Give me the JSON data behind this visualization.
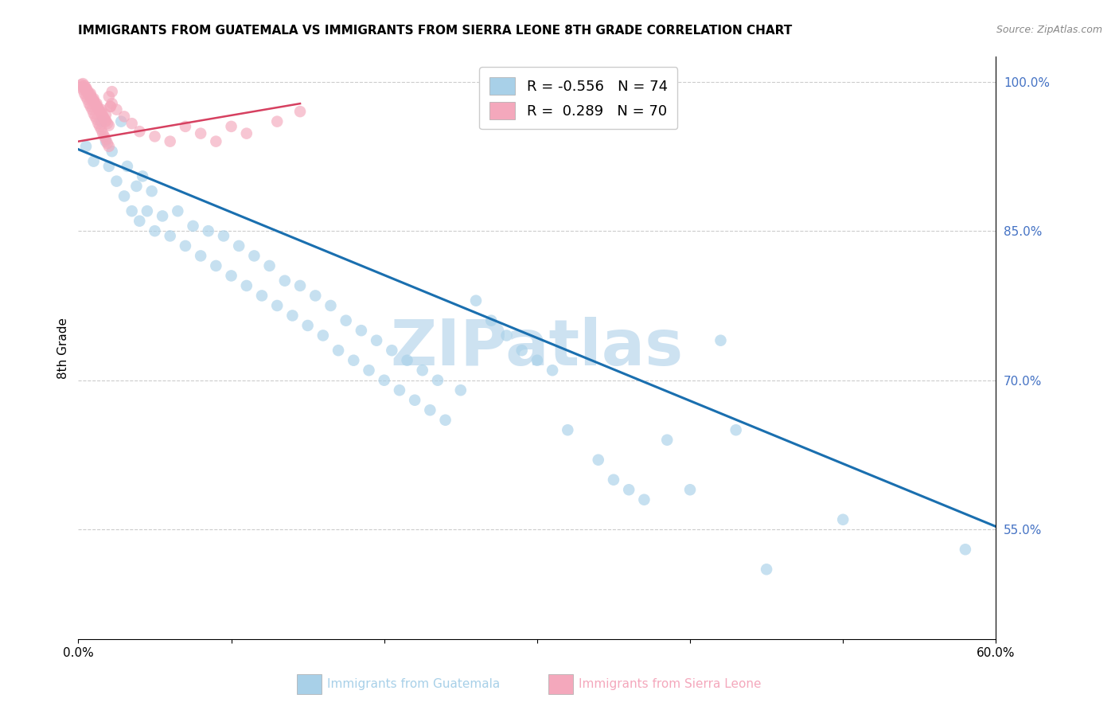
{
  "title": "IMMIGRANTS FROM GUATEMALA VS IMMIGRANTS FROM SIERRA LEONE 8TH GRADE CORRELATION CHART",
  "source": "Source: ZipAtlas.com",
  "ylabel": "8th Grade",
  "xlabel_blue": "Immigrants from Guatemala",
  "xlabel_pink": "Immigrants from Sierra Leone",
  "x_min": 0.0,
  "x_max": 0.6,
  "y_min": 0.44,
  "y_max": 1.025,
  "yticks": [
    0.55,
    0.7,
    0.85,
    1.0
  ],
  "ytick_labels": [
    "55.0%",
    "70.0%",
    "85.0%",
    "100.0%"
  ],
  "R_blue": -0.556,
  "N_blue": 74,
  "R_pink": 0.289,
  "N_pink": 70,
  "blue_color": "#a8d0e8",
  "pink_color": "#f4a8bc",
  "blue_line_color": "#1a6faf",
  "pink_line_color": "#d64060",
  "watermark_text": "ZIPatlas",
  "watermark_color": "#c8dff0",
  "blue_trend_x": [
    0.0,
    0.6
  ],
  "blue_trend_y": [
    0.932,
    0.553
  ],
  "pink_trend_x": [
    0.0,
    0.145
  ],
  "pink_trend_y": [
    0.94,
    0.978
  ],
  "blue_pts_x": [
    0.005,
    0.01,
    0.015,
    0.018,
    0.02,
    0.022,
    0.025,
    0.028,
    0.03,
    0.032,
    0.035,
    0.038,
    0.04,
    0.042,
    0.045,
    0.048,
    0.05,
    0.055,
    0.06,
    0.065,
    0.07,
    0.075,
    0.08,
    0.085,
    0.09,
    0.095,
    0.1,
    0.105,
    0.11,
    0.115,
    0.12,
    0.125,
    0.13,
    0.135,
    0.14,
    0.145,
    0.15,
    0.155,
    0.16,
    0.165,
    0.17,
    0.175,
    0.18,
    0.185,
    0.19,
    0.195,
    0.2,
    0.205,
    0.21,
    0.215,
    0.22,
    0.225,
    0.23,
    0.235,
    0.24,
    0.25,
    0.26,
    0.27,
    0.28,
    0.29,
    0.3,
    0.31,
    0.32,
    0.34,
    0.35,
    0.36,
    0.37,
    0.385,
    0.4,
    0.42,
    0.43,
    0.45,
    0.5,
    0.58
  ],
  "blue_pts_y": [
    0.935,
    0.92,
    0.96,
    0.94,
    0.915,
    0.93,
    0.9,
    0.96,
    0.885,
    0.915,
    0.87,
    0.895,
    0.86,
    0.905,
    0.87,
    0.89,
    0.85,
    0.865,
    0.845,
    0.87,
    0.835,
    0.855,
    0.825,
    0.85,
    0.815,
    0.845,
    0.805,
    0.835,
    0.795,
    0.825,
    0.785,
    0.815,
    0.775,
    0.8,
    0.765,
    0.795,
    0.755,
    0.785,
    0.745,
    0.775,
    0.73,
    0.76,
    0.72,
    0.75,
    0.71,
    0.74,
    0.7,
    0.73,
    0.69,
    0.72,
    0.68,
    0.71,
    0.67,
    0.7,
    0.66,
    0.69,
    0.78,
    0.76,
    0.745,
    0.73,
    0.72,
    0.71,
    0.65,
    0.62,
    0.6,
    0.59,
    0.58,
    0.64,
    0.59,
    0.74,
    0.65,
    0.51,
    0.56,
    0.53
  ],
  "pink_pts_x": [
    0.002,
    0.003,
    0.004,
    0.005,
    0.006,
    0.007,
    0.008,
    0.009,
    0.01,
    0.011,
    0.012,
    0.013,
    0.014,
    0.015,
    0.016,
    0.017,
    0.018,
    0.019,
    0.02,
    0.021,
    0.003,
    0.005,
    0.007,
    0.009,
    0.011,
    0.013,
    0.015,
    0.017,
    0.019,
    0.021,
    0.004,
    0.006,
    0.008,
    0.01,
    0.012,
    0.014,
    0.016,
    0.018,
    0.02,
    0.022,
    0.002,
    0.004,
    0.006,
    0.008,
    0.01,
    0.012,
    0.014,
    0.016,
    0.018,
    0.02,
    0.005,
    0.008,
    0.01,
    0.012,
    0.015,
    0.018,
    0.022,
    0.025,
    0.03,
    0.035,
    0.04,
    0.05,
    0.06,
    0.07,
    0.08,
    0.09,
    0.1,
    0.11,
    0.13,
    0.145
  ],
  "pink_pts_y": [
    0.995,
    0.992,
    0.988,
    0.985,
    0.982,
    0.978,
    0.975,
    0.972,
    0.968,
    0.965,
    0.962,
    0.958,
    0.955,
    0.952,
    0.948,
    0.945,
    0.942,
    0.938,
    0.935,
    0.975,
    0.998,
    0.993,
    0.988,
    0.983,
    0.978,
    0.973,
    0.968,
    0.963,
    0.958,
    0.975,
    0.996,
    0.991,
    0.986,
    0.981,
    0.976,
    0.971,
    0.966,
    0.961,
    0.956,
    0.99,
    0.997,
    0.993,
    0.989,
    0.984,
    0.98,
    0.975,
    0.97,
    0.965,
    0.96,
    0.985,
    0.994,
    0.988,
    0.983,
    0.978,
    0.972,
    0.967,
    0.978,
    0.972,
    0.965,
    0.958,
    0.95,
    0.945,
    0.94,
    0.955,
    0.948,
    0.94,
    0.955,
    0.948,
    0.96,
    0.97
  ]
}
